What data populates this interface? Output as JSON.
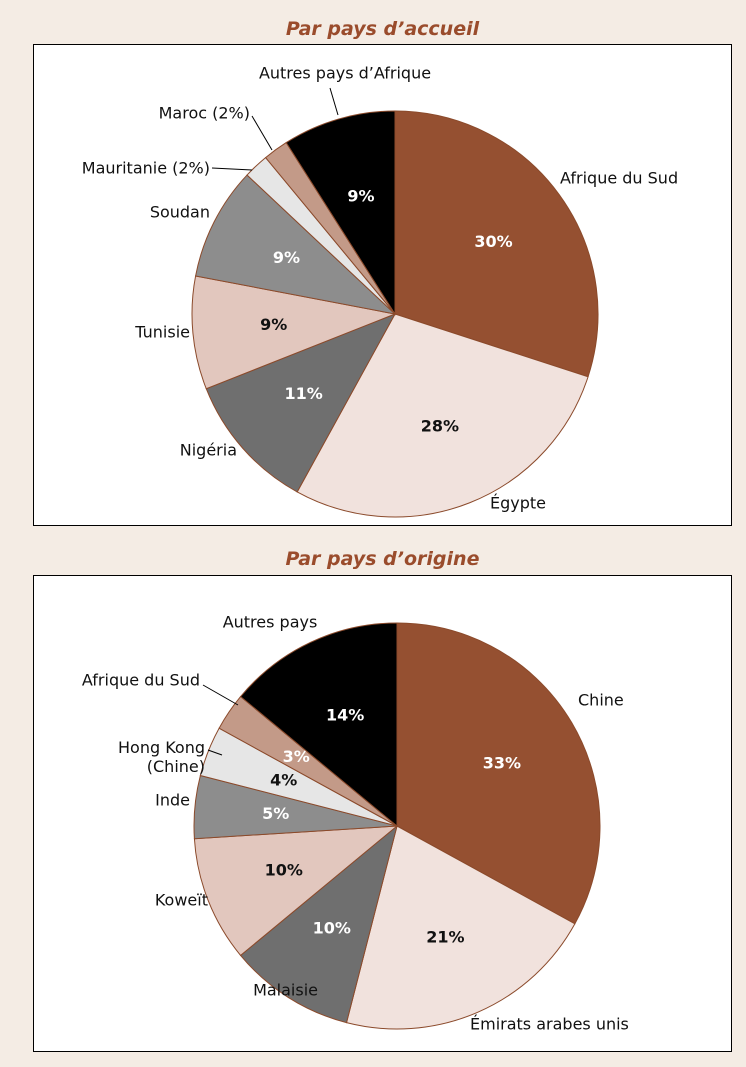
{
  "chart_data": [
    {
      "type": "pie",
      "title": "Par pays d’accueil",
      "categories": [
        "Afrique du Sud",
        "Égypte",
        "Nigéria",
        "Tunisie",
        "Soudan",
        "Mauritanie (2%)",
        "Maroc (2%)",
        "Autres pays d’Afrique"
      ],
      "values": [
        30,
        28,
        11,
        9,
        9,
        2,
        2,
        9
      ],
      "value_labels": [
        "30%",
        "28%",
        "11%",
        "9%",
        "9%",
        null,
        null,
        "9%"
      ],
      "colors": [
        "#955031",
        "#f1e2dd",
        "#6f6f6f",
        "#e2c7be",
        "#8d8d8d",
        "#e6e6e6",
        "#c39a88",
        "#000000"
      ]
    },
    {
      "type": "pie",
      "title": "Par pays d’origine",
      "categories": [
        "Chine",
        "Émirats arabes unis",
        "Malaisie",
        "Koweït",
        "Inde",
        "Hong Kong (Chine)",
        "Afrique du Sud",
        "Autres pays"
      ],
      "values": [
        33,
        21,
        10,
        10,
        5,
        4,
        3,
        14
      ],
      "value_labels": [
        "33%",
        "21%",
        "10%",
        "10%",
        "5%",
        "4%",
        "3%",
        "14%"
      ],
      "colors": [
        "#955031",
        "#f1e2dd",
        "#6f6f6f",
        "#e2c7be",
        "#8d8d8d",
        "#e6e6e6",
        "#c39a88",
        "#000000"
      ]
    }
  ]
}
